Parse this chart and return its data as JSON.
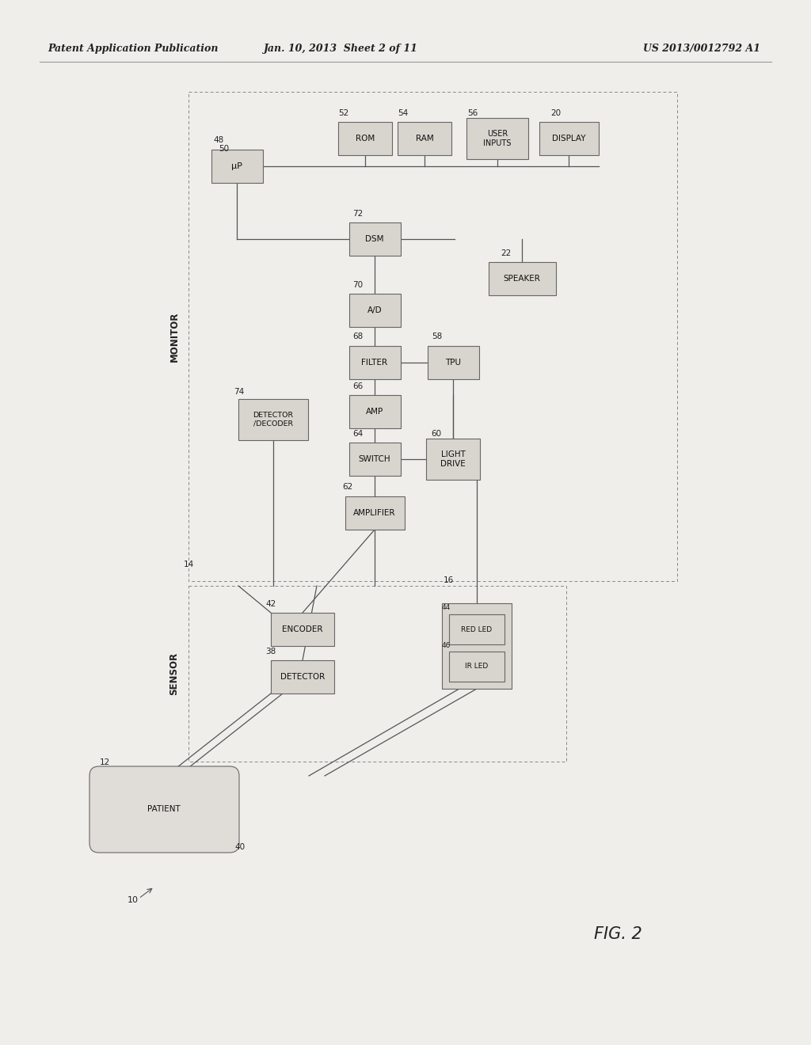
{
  "fig_label": "FIG. 2",
  "header_left": "Patent Application Publication",
  "header_mid": "Jan. 10, 2013  Sheet 2 of 11",
  "header_right": "US 2013/0012792 A1",
  "bg_color": "#f0eeeb",
  "page_color": "#f0eeeb",
  "box_fill": "#d8d4ce",
  "box_edge": "#666666",
  "line_color": "#555555",
  "text_color": "#222222"
}
